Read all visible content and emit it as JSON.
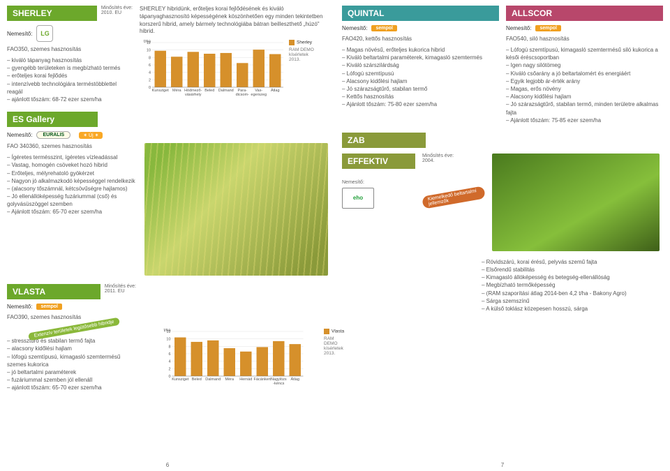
{
  "left": {
    "sherley": {
      "title": "SHERLEY",
      "year_label": "Minősítés éve:",
      "year": "2010. EU",
      "breeder_label": "Nemesítő:",
      "subtitle": "FAO350, szemes hasznosítás",
      "bullets": [
        "kiváló tápanyag hasznosítás",
        "gyengébb területeken is megbízható termés",
        "erőteljes korai fejlődés",
        "intenzívebb technológiára terméstöbblettel reagál",
        "ajánlott tőszám: 68-72 ezer szem/ha"
      ],
      "description": "SHERLEY hibridünk, erőteljes korai fejlődésének és kiváló tápanyaghasznosító képességének köszönhetően egy minden tekintetben korszerű hibrid, amely bármely technológiába bátran beilleszthető „húzó\" hibrid.",
      "chart": {
        "ylabel": "t/ha",
        "ymax": 12,
        "ytick_step": 2,
        "categories": [
          "Kunsziget",
          "Méra",
          "Hódmező-\nvásárhely",
          "Beled",
          "Dalmand",
          "Para-\ndicsom-",
          "Vas-\negerszeg",
          "Átlag"
        ],
        "values": [
          9.8,
          8.2,
          9.5,
          9.0,
          9.2,
          6.5,
          10.1,
          8.9
        ],
        "bar_color": "#d6902b",
        "legend_series": "Sherley",
        "legend_note": "RAM DEMO\nkísérletek\n2013."
      }
    },
    "esgallery": {
      "title": "ES Gallery",
      "breeder_label": "Nemesítő:",
      "breeder": "EURALIS",
      "new_badge": "✶ Új ✶",
      "subtitle": "FAO 340360, szemes hasznosítás",
      "bullets": [
        "Ígéretes termésszint, ígéretes vízleadással",
        "Vastag, homogén csöveket hozó hibrid",
        "Erőteljes, mélyrehatoló gyökérzet",
        "Nagyon jó alkalmazkodó képességgel rendelkezik",
        "(alacsony tőszámnál, kétcsövűségre hajlamos)",
        "Jó ellenállóképesség fuzáriummal (cső) és golyvásüszöggel szemben",
        "Ajánlott tőszám: 65-70 ezer szem/ha"
      ]
    },
    "vlasta": {
      "title": "VLASTA",
      "year_label": "Minősítés éve:",
      "year": "2011. EU",
      "breeder_label": "Nemesítő:",
      "subtitle": "FAO390, szemes hasznosítás",
      "tag": "Extenzív területek legütősebb hibridje",
      "bullets": [
        "stressztűrő és stabilan termő fajta",
        "alacsony kidőlési hajlam",
        "lófogú szemtípusú, kimagasló szemtermésű szemes kukorica",
        "jó beltartalmi paraméterek",
        "fuzáriummal szemben jól ellenáll",
        "ajánlott tőszám: 65-70 ezer szem/ha"
      ],
      "chart": {
        "ylabel": "t/ha",
        "ymax": 12,
        "ytick_step": 2,
        "categories": [
          "Kunsziget",
          "Beled",
          "Dalmand",
          "Méra",
          "Hernád",
          "Fácánkert",
          "Nagylózs\n-kéncs",
          "Átlag"
        ],
        "values": [
          10.4,
          9.2,
          9.6,
          7.5,
          6.6,
          7.8,
          9.4,
          8.6
        ],
        "bar_color": "#d6902b",
        "legend_series": "Vlasta",
        "legend_note": "RAM DEMO\nkísérletek\n2013."
      }
    },
    "page_num": "6"
  },
  "right": {
    "quintal": {
      "title": "QUINTAL",
      "breeder_label": "Nemesítő:",
      "subtitle": "FAO420, kettős hasznosítás",
      "bullets": [
        "Magas növésű, erőteljes kukorica hibrid",
        "Kiváló beltartalmi paraméterek, kimagasló szemtermés",
        "Kiváló szárszilárdság",
        "Lófogú szemtípusú",
        "Alacsony kidőlési hajlam",
        "Jó szárazságtűrő, stabilan termő",
        "Kettős hasznosítás",
        "Ajánlott tőszám: 75-80 ezer szem/ha"
      ]
    },
    "allscor": {
      "title": "ALLSCOR",
      "breeder_label": "Nemesítő:",
      "subtitle": "FAO540, siló hasznosítás",
      "bullets": [
        "Lófogú szemtípusú, kimagasló szemtermésű siló kukorica a késői éréscsoportban",
        "Igen nagy silótömeg",
        "Kiváló csőarány a jó beltartalomért és energiáért",
        "Egyik legjobb ár-érték arány",
        "Magas, erős növény",
        "Alacsony kidőlési hajlam",
        "Jó szárazságtűrő, stabilan termő, minden területre alkalmas fajta",
        "Ajánlott tőszám: 75-85 ezer szem/ha"
      ]
    },
    "zab": {
      "title": "ZAB"
    },
    "effektiv": {
      "title": "EFFEKTIV",
      "year_label": "Minősítés éve:",
      "year": "2004.",
      "breeder_label": "Nemesítő:",
      "breeder": "eho",
      "tag": "Kiemelkedő beltartalmi jellemzők",
      "bullets": [
        "Rövidszárú, korai érésű, pelyvás szemű fajta",
        "Elsőrendű stabilitás",
        "Kimagasló állóképesség és betegség-ellenállóság",
        "Megbízható termőképesség",
        "(RAM szaporítási átlag 2014-ben 4,2 t/ha - Bakony Agro)",
        "Sárga szemszínű",
        "A külső toklász közepesen hosszú, sárga"
      ]
    },
    "page_num": "7"
  }
}
